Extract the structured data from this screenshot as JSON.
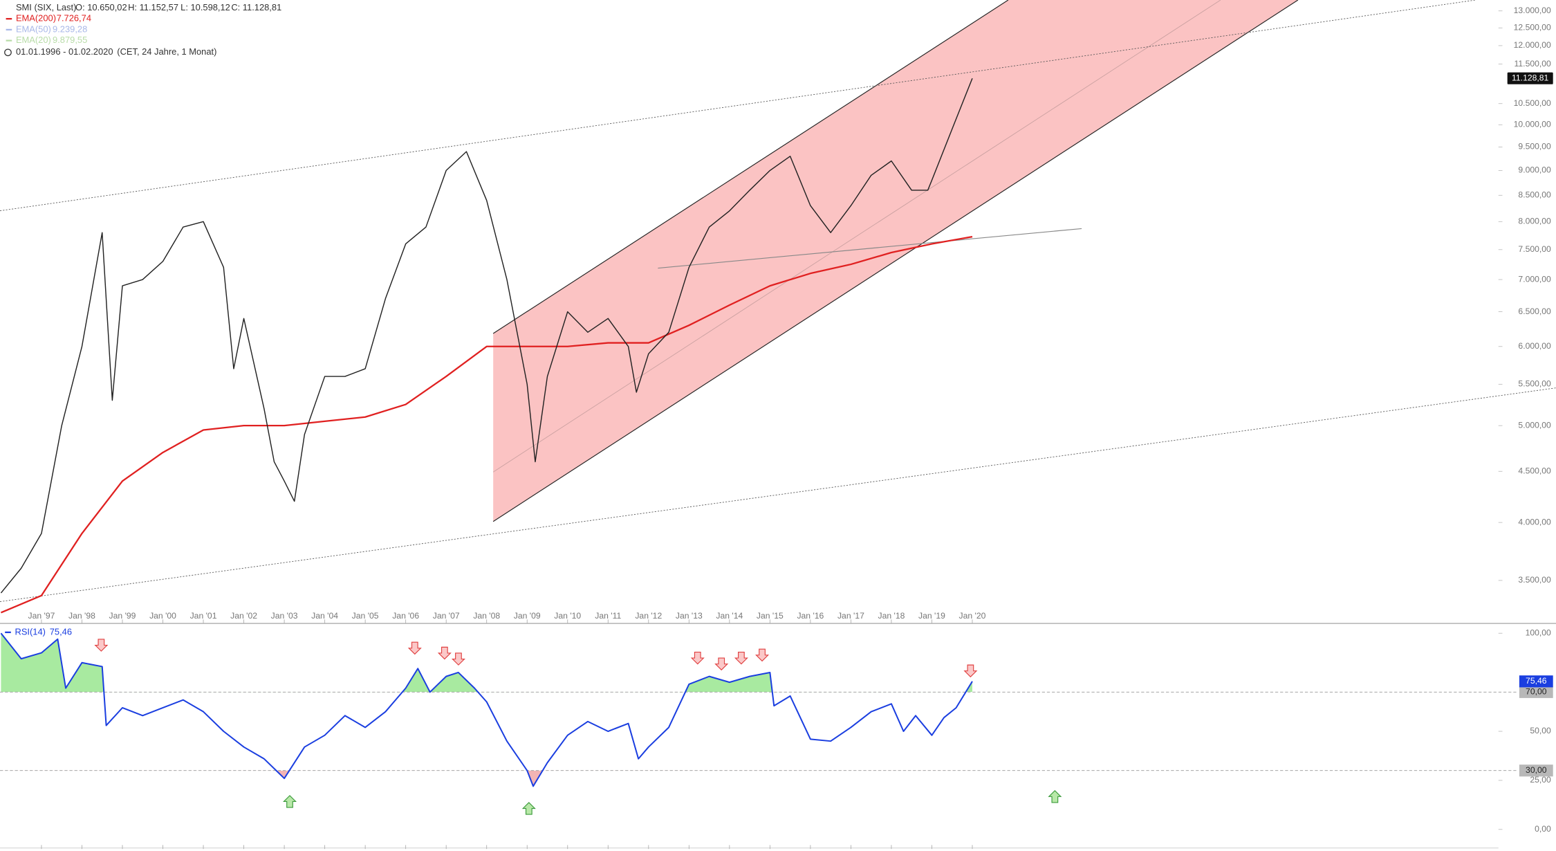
{
  "header": {
    "symbol": "SMI (SIX, Last)",
    "ohlc": [
      "O: 10.650,02",
      "H: 11.152,57",
      "L: 10.598,12",
      "C: 11.128,81"
    ],
    "indicators": [
      {
        "name": "EMA(200)",
        "value": "7.726,74",
        "color": "#e02020"
      },
      {
        "name": "EMA(50)",
        "value": "9.239,28",
        "color": "#a9b8e8"
      },
      {
        "name": "EMA(20)",
        "value": "9.879,55",
        "color": "#b8dca8"
      }
    ],
    "range": "01.01.1996 - 01.02.2020",
    "range_note": "(CET, 24 Jahre, 1 Monat)"
  },
  "chart_data": [
    {
      "type": "line",
      "log_scale": true,
      "price_label": "11.128,81",
      "xlim": [
        1996,
        2033
      ],
      "ylim": [
        3170,
        13330
      ],
      "xticks": [
        {
          "value": 1997,
          "label": "Jan '97"
        },
        {
          "value": 1998,
          "label": "Jan '98"
        },
        {
          "value": 1999,
          "label": "Jan '99"
        },
        {
          "value": 2000,
          "label": "Jan '00"
        },
        {
          "value": 2001,
          "label": "Jan '01"
        },
        {
          "value": 2002,
          "label": "Jan '02"
        },
        {
          "value": 2003,
          "label": "Jan '03"
        },
        {
          "value": 2004,
          "label": "Jan '04"
        },
        {
          "value": 2005,
          "label": "Jan '05"
        },
        {
          "value": 2006,
          "label": "Jan '06"
        },
        {
          "value": 2007,
          "label": "Jan '07"
        },
        {
          "value": 2008,
          "label": "Jan '08"
        },
        {
          "value": 2009,
          "label": "Jan '09"
        },
        {
          "value": 2010,
          "label": "Jan '10"
        },
        {
          "value": 2011,
          "label": "Jan '11"
        },
        {
          "value": 2012,
          "label": "Jan '12"
        },
        {
          "value": 2013,
          "label": "Jan '13"
        },
        {
          "value": 2014,
          "label": "Jan '14"
        },
        {
          "value": 2015,
          "label": "Jan '15"
        },
        {
          "value": 2016,
          "label": "Jan '16"
        },
        {
          "value": 2017,
          "label": "Jan '17"
        },
        {
          "value": 2018,
          "label": "Jan '18"
        },
        {
          "value": 2019,
          "label": "Jan '19"
        },
        {
          "value": 2020,
          "label": "Jan '20"
        }
      ],
      "yticks": [
        {
          "value": 3500,
          "label": "3.500,00"
        },
        {
          "value": 4000,
          "label": "4.000,00"
        },
        {
          "value": 4500,
          "label": "4.500,00"
        },
        {
          "value": 5000,
          "label": "5.000,00"
        },
        {
          "value": 5500,
          "label": "5.500,00"
        },
        {
          "value": 6000,
          "label": "6.000,00"
        },
        {
          "value": 6500,
          "label": "6.500,00"
        },
        {
          "value": 7000,
          "label": "7.000,00"
        },
        {
          "value": 7500,
          "label": "7.500,00"
        },
        {
          "value": 8000,
          "label": "8.000,00"
        },
        {
          "value": 8500,
          "label": "8.500,00"
        },
        {
          "value": 9000,
          "label": "9.000,00"
        },
        {
          "value": 9500,
          "label": "9.500,00"
        },
        {
          "value": 10000,
          "label": "10.000,00"
        },
        {
          "value": 10500,
          "label": "10.500,00"
        },
        {
          "value": 11500,
          "label": "11.500,00"
        },
        {
          "value": 12000,
          "label": "12.000,00"
        },
        {
          "value": 12500,
          "label": "12.500,00"
        },
        {
          "value": 13000,
          "label": "13.000,00"
        }
      ],
      "series": [
        {
          "name": "SMI (SIX, Last)",
          "color": "#222222",
          "x": [
            1996.0,
            1996.5,
            1997.0,
            1997.5,
            1998.0,
            1998.5,
            1998.75,
            1999.0,
            1999.5,
            2000.0,
            2000.5,
            2001.0,
            2001.5,
            2001.75,
            2002.0,
            2002.5,
            2002.75,
            2003.0,
            2003.25,
            2003.5,
            2004.0,
            2004.5,
            2005.0,
            2005.5,
            2006.0,
            2006.5,
            2007.0,
            2007.5,
            2008.0,
            2008.5,
            2009.0,
            2009.2,
            2009.5,
            2010.0,
            2010.5,
            2011.0,
            2011.5,
            2011.7,
            2012.0,
            2012.5,
            2013.0,
            2013.5,
            2014.0,
            2014.5,
            2015.0,
            2015.5,
            2016.0,
            2016.5,
            2017.0,
            2017.5,
            2018.0,
            2018.5,
            2018.9,
            2019.0,
            2019.5,
            2020.0
          ],
          "values": [
            3400,
            3600,
            3900,
            5000,
            6000,
            7800,
            5300,
            6900,
            7000,
            7300,
            7900,
            8000,
            7200,
            5700,
            6400,
            5200,
            4600,
            4400,
            4200,
            4900,
            5600,
            5600,
            5700,
            6700,
            7600,
            7900,
            9000,
            9400,
            8400,
            7000,
            5500,
            4600,
            5600,
            6500,
            6200,
            6400,
            6000,
            5400,
            5900,
            6200,
            7200,
            7900,
            8200,
            8600,
            9000,
            9300,
            8300,
            7800,
            8300,
            8900,
            9200,
            8600,
            8600,
            8800,
            9900,
            11128.81
          ]
        },
        {
          "name": "EMA(200)",
          "color": "#e02020",
          "x": [
            1996,
            1997,
            1998,
            1999,
            2000,
            2001,
            2002,
            2003,
            2004,
            2005,
            2006,
            2007,
            2008,
            2009,
            2010,
            2011,
            2012,
            2013,
            2014,
            2015,
            2016,
            2017,
            2018,
            2019,
            2020
          ],
          "values": [
            3250,
            3380,
            3900,
            4400,
            4700,
            4950,
            5000,
            5000,
            5050,
            5100,
            5250,
            5600,
            6000,
            6000,
            6000,
            6050,
            6050,
            6300,
            6600,
            6900,
            7100,
            7250,
            7450,
            7600,
            7726.74
          ]
        }
      ]
    },
    {
      "type": "line",
      "xlim": [
        1996,
        2033
      ],
      "ylim": [
        -10,
        104
      ],
      "legend": "RSI(14)",
      "legend_value": "75,46",
      "last_label": "75,46",
      "yticks": [
        {
          "value": 0,
          "label": "0,00"
        },
        {
          "value": 25,
          "label": "25,00"
        },
        {
          "value": 50,
          "label": "50,00"
        },
        {
          "value": 100,
          "label": "100,00"
        }
      ],
      "levels": [
        {
          "value": 70,
          "label": "70,00"
        },
        {
          "value": 30,
          "label": "30,00"
        }
      ],
      "series": [
        {
          "name": "RSI(14)",
          "color": "#1a3ee0",
          "x": [
            1996.0,
            1996.5,
            1997.0,
            1997.4,
            1997.6,
            1998.0,
            1998.5,
            1998.6,
            1999.0,
            1999.5,
            2000.0,
            2000.5,
            2001.0,
            2001.5,
            2002.0,
            2002.5,
            2002.9,
            2003.0,
            2003.5,
            2004.0,
            2004.5,
            2005.0,
            2005.5,
            2006.0,
            2006.3,
            2006.6,
            2007.0,
            2007.3,
            2007.7,
            2008.0,
            2008.5,
            2009.0,
            2009.15,
            2009.5,
            2010.0,
            2010.5,
            2011.0,
            2011.5,
            2011.75,
            2012.0,
            2012.5,
            2013.0,
            2013.5,
            2014.0,
            2014.5,
            2015.0,
            2015.1,
            2015.5,
            2016.0,
            2016.5,
            2017.0,
            2017.5,
            2018.0,
            2018.3,
            2018.6,
            2019.0,
            2019.3,
            2019.6,
            2020.0
          ],
          "values": [
            100,
            87,
            90,
            97,
            72,
            85,
            83,
            53,
            62,
            58,
            62,
            66,
            60,
            50,
            42,
            36,
            28,
            26,
            42,
            48,
            58,
            52,
            60,
            72,
            82,
            70,
            78,
            80,
            72,
            65,
            45,
            30,
            22,
            34,
            48,
            55,
            50,
            54,
            36,
            42,
            52,
            74,
            78,
            75,
            78,
            80,
            63,
            68,
            46,
            45,
            52,
            60,
            64,
            50,
            58,
            48,
            57,
            62,
            75.46
          ]
        }
      ]
    }
  ]
}
